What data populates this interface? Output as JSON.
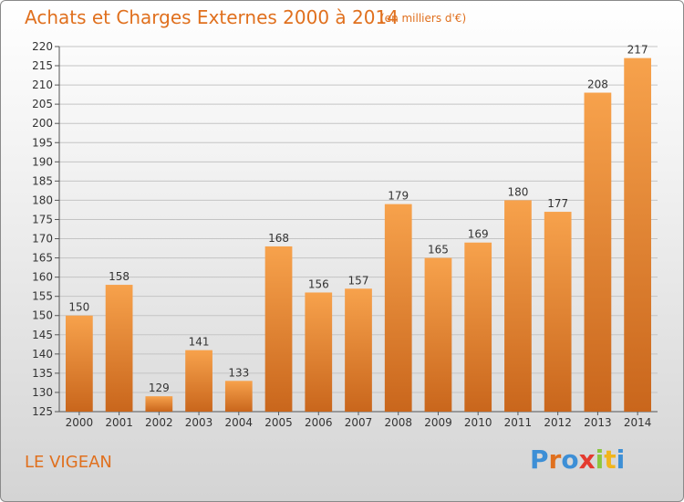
{
  "header": {
    "title": "Achats et Charges Externes 2000 à 2014",
    "unit": "(en milliers d'€)"
  },
  "footer": {
    "commune": "LE VIGEAN",
    "logo_text": "Proxiti"
  },
  "colors": {
    "accent": "#e0701e",
    "bar_light": "#f7a24c",
    "bar_dark": "#c9661c",
    "logo": [
      "#3d8fd6",
      "#e0701e",
      "#3d8fd6",
      "#e43a2f",
      "#8cc63f",
      "#f1b51c",
      "#3d8fd6"
    ]
  },
  "chart_data": {
    "type": "bar",
    "title": "Achats et Charges Externes 2000 à 2014",
    "categories": [
      "2000",
      "2001",
      "2002",
      "2003",
      "2004",
      "2005",
      "2006",
      "2007",
      "2008",
      "2009",
      "2010",
      "2011",
      "2012",
      "2013",
      "2014"
    ],
    "values": [
      150,
      158,
      129,
      141,
      133,
      168,
      156,
      157,
      179,
      165,
      169,
      180,
      177,
      208,
      217
    ],
    "ylim": [
      125,
      220
    ],
    "yticks": [
      125,
      130,
      135,
      140,
      145,
      150,
      155,
      160,
      165,
      170,
      175,
      180,
      185,
      190,
      195,
      200,
      205,
      210,
      215,
      220
    ],
    "grid": true,
    "data_labels": true
  }
}
